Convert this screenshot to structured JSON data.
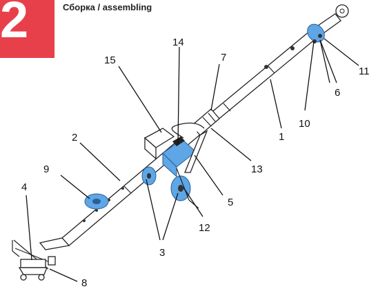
{
  "header": {
    "step_number": "2",
    "section_title": "Сборка / assembling"
  },
  "colors": {
    "badge": "#e8404a",
    "highlight": "#5ea6e6",
    "line": "#222222"
  },
  "callouts": [
    "1",
    "2",
    "3",
    "4",
    "5",
    "6",
    "7",
    "8",
    "9",
    "10",
    "11",
    "12",
    "13",
    "14",
    "15"
  ]
}
